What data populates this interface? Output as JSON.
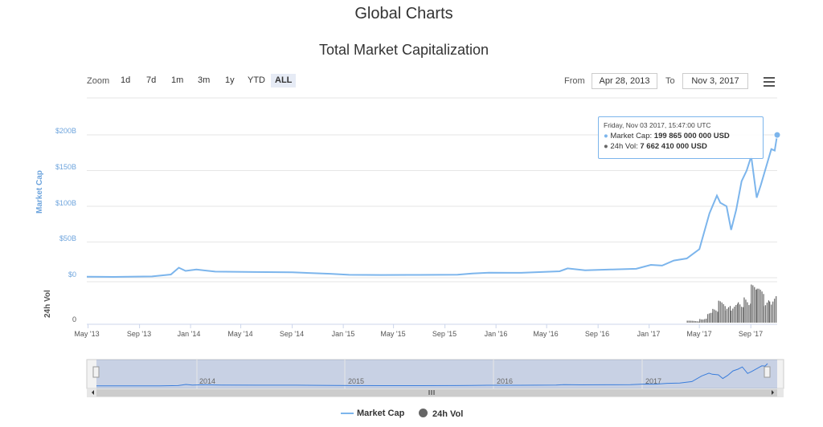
{
  "page": {
    "title": "Global Charts"
  },
  "chart_data": {
    "type": "line",
    "title": "Total Market Capitalization",
    "range_selector": {
      "zoom_label": "Zoom",
      "buttons": [
        "1d",
        "7d",
        "1m",
        "3m",
        "1y",
        "YTD",
        "ALL"
      ],
      "active": "ALL",
      "from_label": "From",
      "from_value": "Apr 28, 2013",
      "to_label": "To",
      "to_value": "Nov 3, 2017"
    },
    "x_tick_labels": [
      "May '13",
      "Sep '13",
      "Jan '14",
      "May '14",
      "Sep '14",
      "Jan '15",
      "May '15",
      "Sep '15",
      "Jan '16",
      "May '16",
      "Sep '16",
      "Jan '17",
      "May '17",
      "Sep '17"
    ],
    "y_axis_market_cap": {
      "title": "Market Cap",
      "ticks": [
        "$0",
        "$50B",
        "$100B",
        "$150B",
        "$200B"
      ],
      "range": [
        0,
        200
      ]
    },
    "y_axis_volume": {
      "title": "24h Vol",
      "ticks": [
        "0"
      ]
    },
    "navigator_labels": [
      "2014",
      "2015",
      "2016",
      "2017"
    ],
    "series": [
      {
        "name": "Market Cap",
        "color": "#7cb5ec",
        "unit": "billion USD",
        "points": [
          [
            "2013-04-28",
            1.5
          ],
          [
            "2013-07-01",
            1.1
          ],
          [
            "2013-10-01",
            1.8
          ],
          [
            "2013-11-15",
            4.5
          ],
          [
            "2013-12-04",
            14.0
          ],
          [
            "2013-12-20",
            9.5
          ],
          [
            "2014-01-15",
            11.5
          ],
          [
            "2014-03-01",
            8.5
          ],
          [
            "2014-06-01",
            8.0
          ],
          [
            "2014-09-01",
            7.5
          ],
          [
            "2014-12-01",
            5.5
          ],
          [
            "2015-01-15",
            4.0
          ],
          [
            "2015-04-01",
            3.8
          ],
          [
            "2015-07-01",
            3.9
          ],
          [
            "2015-10-01",
            4.2
          ],
          [
            "2015-11-05",
            6.0
          ],
          [
            "2015-12-15",
            7.0
          ],
          [
            "2016-03-01",
            6.8
          ],
          [
            "2016-06-01",
            9.0
          ],
          [
            "2016-06-20",
            13.0
          ],
          [
            "2016-08-01",
            10.5
          ],
          [
            "2016-10-01",
            11.5
          ],
          [
            "2016-12-01",
            12.5
          ],
          [
            "2017-01-05",
            18.0
          ],
          [
            "2017-02-01",
            17.0
          ],
          [
            "2017-03-01",
            24.0
          ],
          [
            "2017-04-01",
            27.0
          ],
          [
            "2017-05-01",
            40.0
          ],
          [
            "2017-05-25",
            90.0
          ],
          [
            "2017-06-12",
            115.0
          ],
          [
            "2017-06-20",
            105.0
          ],
          [
            "2017-07-05",
            100.0
          ],
          [
            "2017-07-16",
            67.0
          ],
          [
            "2017-07-28",
            95.0
          ],
          [
            "2017-08-10",
            135.0
          ],
          [
            "2017-08-22",
            150.0
          ],
          [
            "2017-09-02",
            170.0
          ],
          [
            "2017-09-15",
            112.0
          ],
          [
            "2017-09-25",
            130.0
          ],
          [
            "2017-10-10",
            160.0
          ],
          [
            "2017-10-20",
            180.0
          ],
          [
            "2017-10-28",
            178.0
          ],
          [
            "2017-11-03",
            199.865
          ]
        ]
      },
      {
        "name": "24h Vol",
        "color": "#666666",
        "type": "column",
        "note_scale": "relative",
        "points": [
          [
            "2017-04-01",
            0.05
          ],
          [
            "2017-05-01",
            0.12
          ],
          [
            "2017-05-20",
            0.25
          ],
          [
            "2017-06-01",
            0.35
          ],
          [
            "2017-06-15",
            0.55
          ],
          [
            "2017-07-01",
            0.45
          ],
          [
            "2017-07-15",
            0.5
          ],
          [
            "2017-08-01",
            0.6
          ],
          [
            "2017-08-15",
            0.7
          ],
          [
            "2017-09-01",
            0.95
          ],
          [
            "2017-09-15",
            0.85
          ],
          [
            "2017-10-01",
            0.65
          ],
          [
            "2017-10-15",
            0.75
          ],
          [
            "2017-11-03",
            0.8
          ]
        ]
      }
    ],
    "tooltip": {
      "date": "Friday, Nov 03 2017, 15:47:00 UTC",
      "market_cap_label": "Market Cap:",
      "market_cap_value": "199 865 000 000 USD",
      "vol_label": "24h Vol:",
      "vol_value": "7 662 410 000 USD"
    },
    "legend": [
      "Market Cap",
      "24h Vol"
    ],
    "legend_position": "bottom-center",
    "grid": true
  }
}
